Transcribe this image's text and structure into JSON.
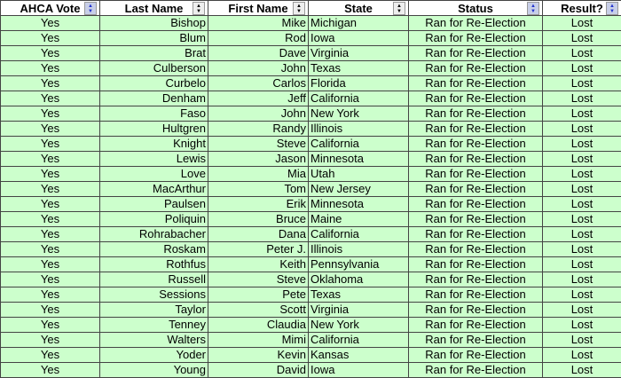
{
  "headers": [
    {
      "label": "AHCA Vote",
      "sort_active": true
    },
    {
      "label": "Last Name",
      "sort_active": false
    },
    {
      "label": "First Name",
      "sort_active": false
    },
    {
      "label": "State",
      "sort_active": false
    },
    {
      "label": "Status",
      "sort_active": true
    },
    {
      "label": "Result?",
      "sort_active": true
    }
  ],
  "colors": {
    "row_bg": "#ccffcc",
    "active_sort": "#2233cc"
  },
  "rows": [
    [
      "Yes",
      "Bishop",
      "Mike",
      "Michigan",
      "Ran for Re-Election",
      "Lost"
    ],
    [
      "Yes",
      "Blum",
      "Rod",
      "Iowa",
      "Ran for Re-Election",
      "Lost"
    ],
    [
      "Yes",
      "Brat",
      "Dave",
      "Virginia",
      "Ran for Re-Election",
      "Lost"
    ],
    [
      "Yes",
      "Culberson",
      "John",
      "Texas",
      "Ran for Re-Election",
      "Lost"
    ],
    [
      "Yes",
      "Curbelo",
      "Carlos",
      "Florida",
      "Ran for Re-Election",
      "Lost"
    ],
    [
      "Yes",
      "Denham",
      "Jeff",
      "California",
      "Ran for Re-Election",
      "Lost"
    ],
    [
      "Yes",
      "Faso",
      "John",
      "New York",
      "Ran for Re-Election",
      "Lost"
    ],
    [
      "Yes",
      "Hultgren",
      "Randy",
      "Illinois",
      "Ran for Re-Election",
      "Lost"
    ],
    [
      "Yes",
      "Knight",
      "Steve",
      "California",
      "Ran for Re-Election",
      "Lost"
    ],
    [
      "Yes",
      "Lewis",
      "Jason",
      "Minnesota",
      "Ran for Re-Election",
      "Lost"
    ],
    [
      "Yes",
      "Love",
      "Mia",
      "Utah",
      "Ran for Re-Election",
      "Lost"
    ],
    [
      "Yes",
      "MacArthur",
      "Tom",
      "New Jersey",
      "Ran for Re-Election",
      "Lost"
    ],
    [
      "Yes",
      "Paulsen",
      "Erik",
      "Minnesota",
      "Ran for Re-Election",
      "Lost"
    ],
    [
      "Yes",
      "Poliquin",
      "Bruce",
      "Maine",
      "Ran for Re-Election",
      "Lost"
    ],
    [
      "Yes",
      "Rohrabacher",
      "Dana",
      "California",
      "Ran for Re-Election",
      "Lost"
    ],
    [
      "Yes",
      "Roskam",
      "Peter J.",
      "Illinois",
      "Ran for Re-Election",
      "Lost"
    ],
    [
      "Yes",
      "Rothfus",
      "Keith",
      "Pennsylvania",
      "Ran for Re-Election",
      "Lost"
    ],
    [
      "Yes",
      "Russell",
      "Steve",
      "Oklahoma",
      "Ran for Re-Election",
      "Lost"
    ],
    [
      "Yes",
      "Sessions",
      "Pete",
      "Texas",
      "Ran for Re-Election",
      "Lost"
    ],
    [
      "Yes",
      "Taylor",
      "Scott",
      "Virginia",
      "Ran for Re-Election",
      "Lost"
    ],
    [
      "Yes",
      "Tenney",
      "Claudia",
      "New York",
      "Ran for Re-Election",
      "Lost"
    ],
    [
      "Yes",
      "Walters",
      "Mimi",
      "California",
      "Ran for Re-Election",
      "Lost"
    ],
    [
      "Yes",
      "Yoder",
      "Kevin",
      "Kansas",
      "Ran for Re-Election",
      "Lost"
    ],
    [
      "Yes",
      "Young",
      "David",
      "Iowa",
      "Ran for Re-Election",
      "Lost"
    ]
  ]
}
